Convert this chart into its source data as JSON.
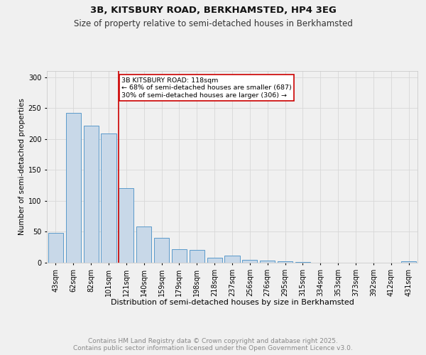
{
  "title1": "3B, KITSBURY ROAD, BERKHAMSTED, HP4 3EG",
  "title2": "Size of property relative to semi-detached houses in Berkhamsted",
  "xlabel": "Distribution of semi-detached houses by size in Berkhamsted",
  "ylabel": "Number of semi-detached properties",
  "categories": [
    "43sqm",
    "62sqm",
    "82sqm",
    "101sqm",
    "121sqm",
    "140sqm",
    "159sqm",
    "179sqm",
    "198sqm",
    "218sqm",
    "237sqm",
    "256sqm",
    "276sqm",
    "295sqm",
    "315sqm",
    "334sqm",
    "353sqm",
    "373sqm",
    "392sqm",
    "412sqm",
    "431sqm"
  ],
  "values": [
    48,
    242,
    222,
    209,
    120,
    59,
    40,
    22,
    21,
    8,
    11,
    5,
    4,
    2,
    1,
    0,
    0,
    0,
    0,
    0,
    2
  ],
  "bar_color": "#c8d8e8",
  "bar_edge_color": "#5a9aca",
  "highlight_line_color": "#cc0000",
  "annotation_text": "3B KITSBURY ROAD: 118sqm\n← 68% of semi-detached houses are smaller (687)\n30% of semi-detached houses are larger (306) →",
  "annotation_box_color": "#ffffff",
  "annotation_box_edge": "#cc0000",
  "ylim": [
    0,
    310
  ],
  "yticks": [
    0,
    50,
    100,
    150,
    200,
    250,
    300
  ],
  "footnote": "Contains HM Land Registry data © Crown copyright and database right 2025.\nContains public sector information licensed under the Open Government Licence v3.0.",
  "background_color": "#f0f0f0",
  "grid_color": "#d8d8d8",
  "title1_fontsize": 9.5,
  "title2_fontsize": 8.5,
  "xlabel_fontsize": 8,
  "ylabel_fontsize": 7.5,
  "tick_fontsize": 7,
  "footnote_fontsize": 6.5
}
